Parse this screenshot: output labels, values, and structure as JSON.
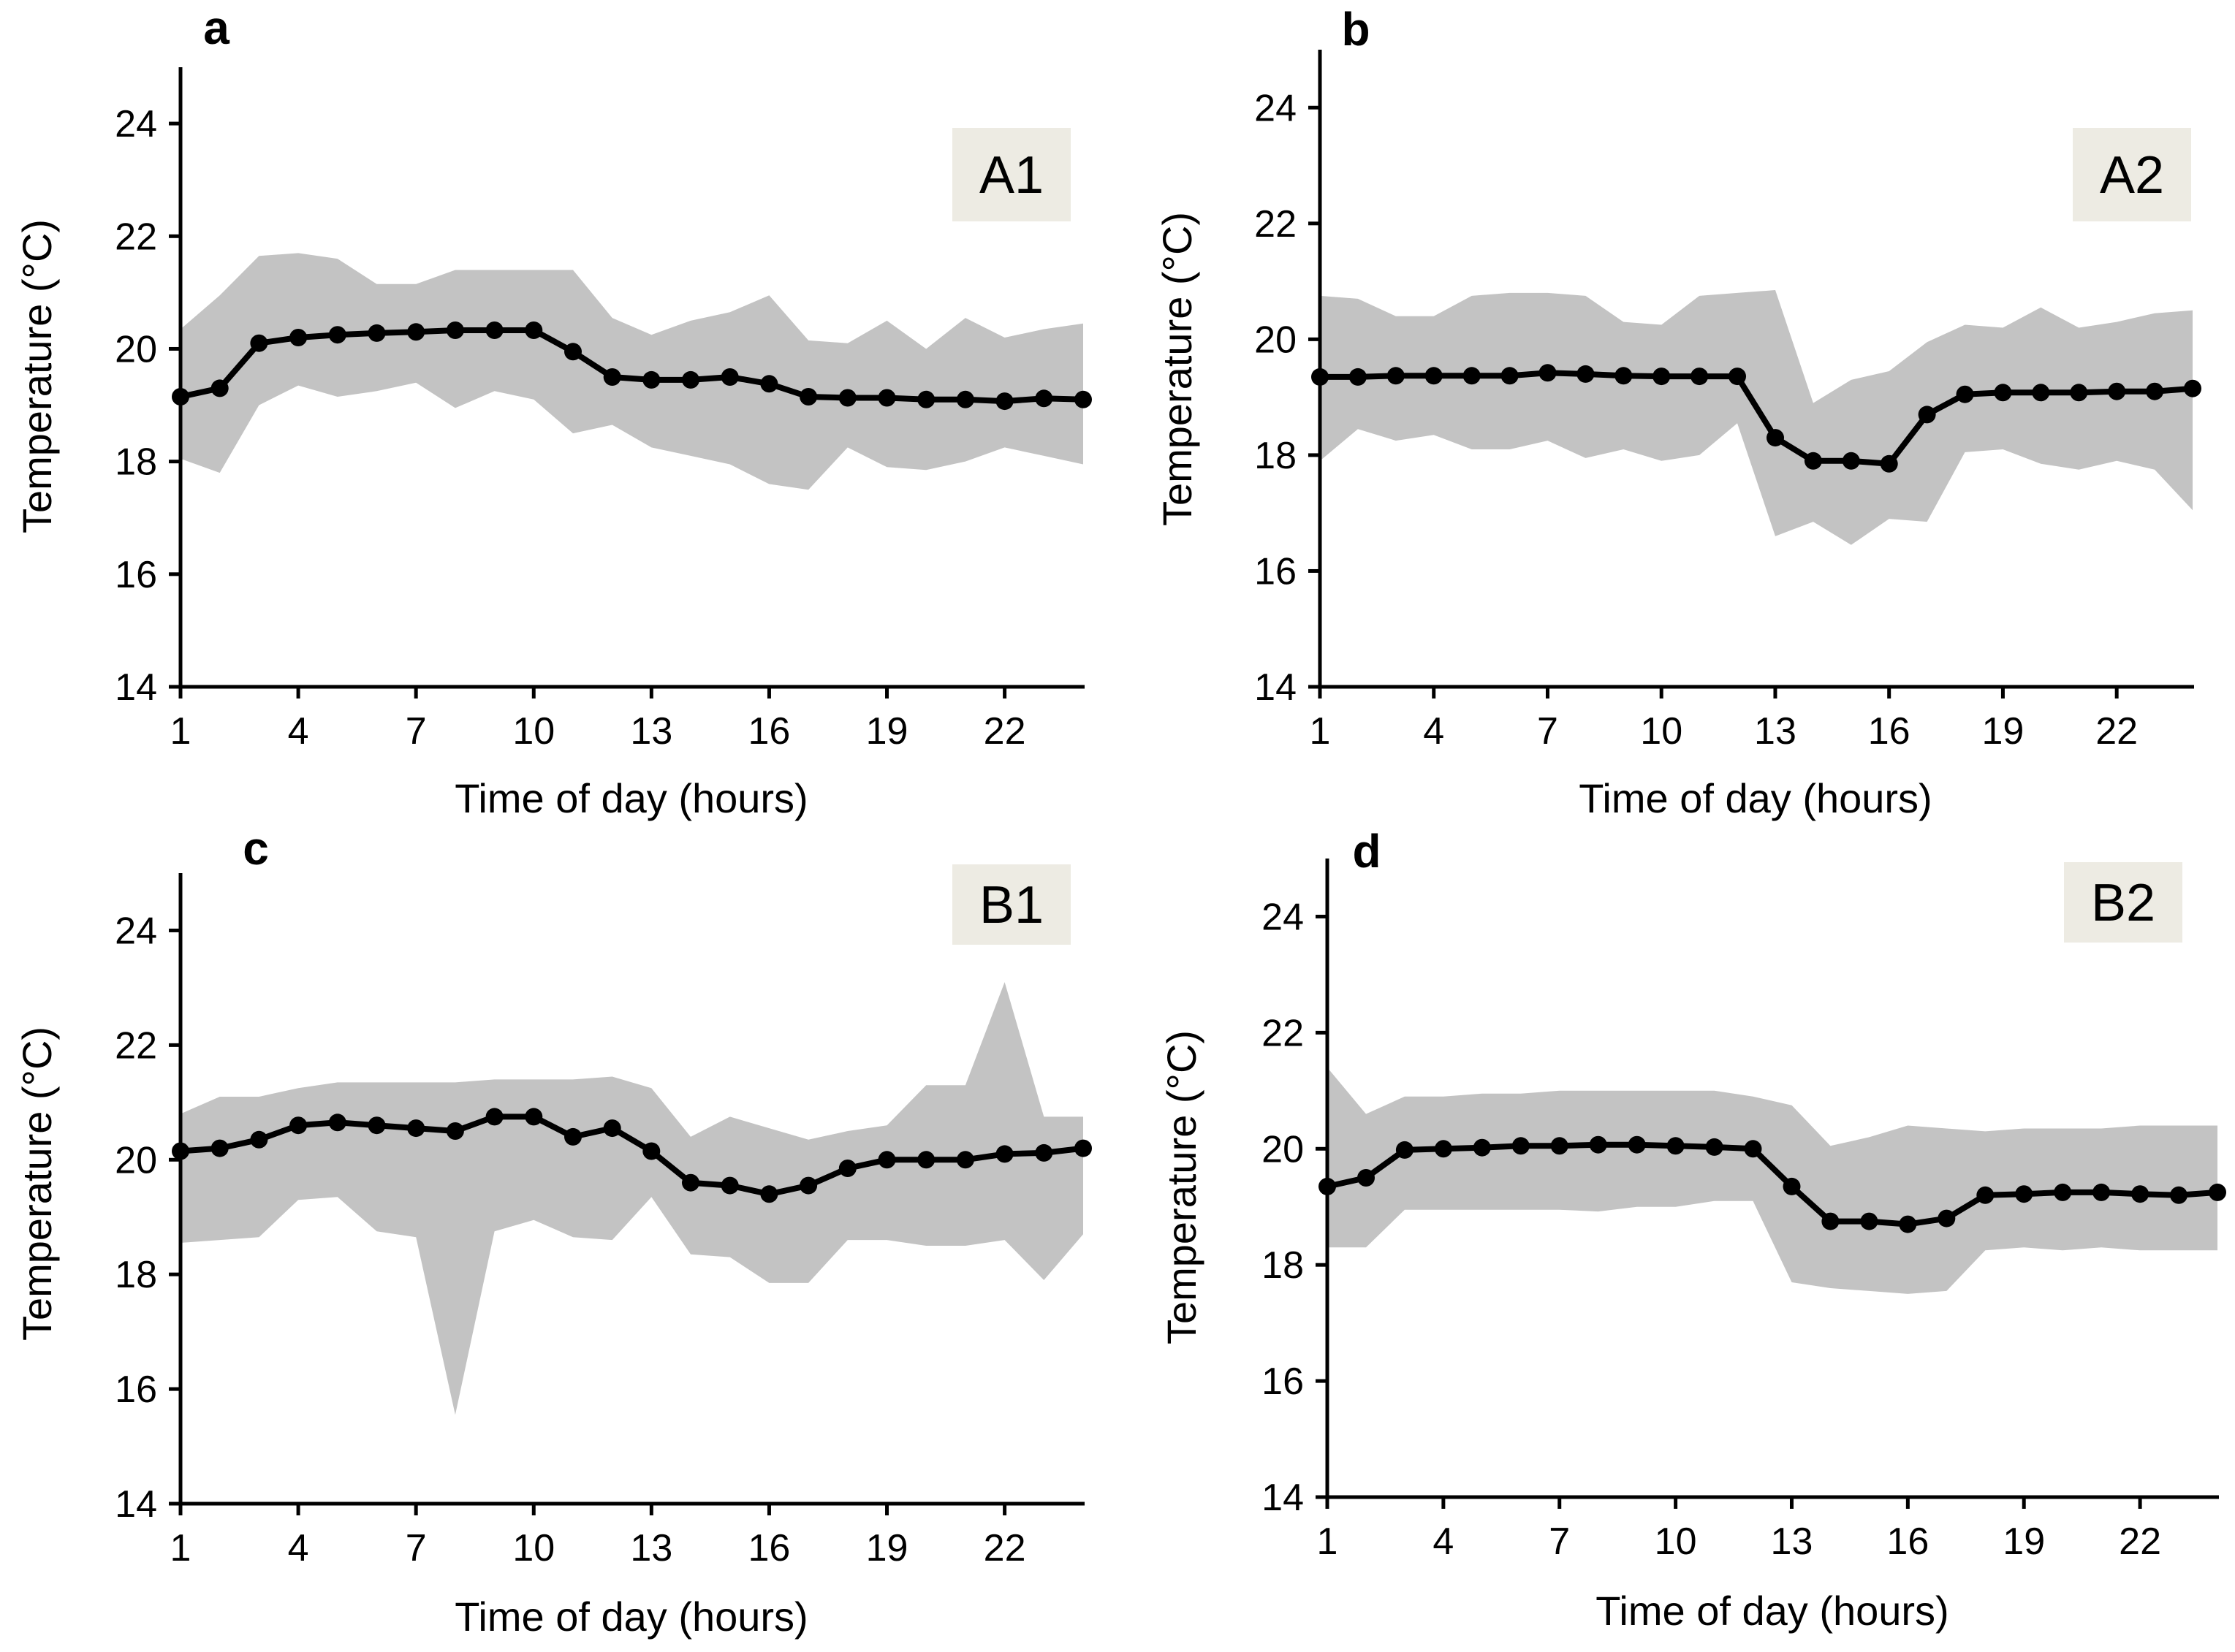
{
  "colors": {
    "band": "#c3c3c3",
    "line": "#000000",
    "tag_bg": "#edebe3",
    "axis": "#000000"
  },
  "chart_data": [
    {
      "type": "line",
      "panel": "a",
      "tag": "A1",
      "xlabel": "Time of day (hours)",
      "ylabel": "Temperature (°C)",
      "xlim": [
        1,
        24
      ],
      "ylim": [
        14,
        25
      ],
      "xticks": [
        1,
        4,
        7,
        10,
        13,
        16,
        19,
        22
      ],
      "yticks": [
        14,
        16,
        18,
        20,
        22,
        24
      ],
      "x": [
        1,
        2,
        3,
        4,
        5,
        6,
        7,
        8,
        9,
        10,
        11,
        12,
        13,
        14,
        15,
        16,
        17,
        18,
        19,
        20,
        21,
        22,
        23,
        24
      ],
      "series": [
        {
          "name": "mean",
          "values": [
            19.15,
            19.3,
            20.1,
            20.2,
            20.25,
            20.28,
            20.3,
            20.33,
            20.33,
            20.33,
            19.95,
            19.5,
            19.45,
            19.45,
            19.5,
            19.38,
            19.15,
            19.13,
            19.13,
            19.1,
            19.1,
            19.07,
            19.12,
            19.1
          ]
        },
        {
          "name": "max",
          "values": [
            20.35,
            20.95,
            21.65,
            21.7,
            21.6,
            21.15,
            21.15,
            21.4,
            21.4,
            21.4,
            21.4,
            20.55,
            20.25,
            20.5,
            20.65,
            20.95,
            20.15,
            20.1,
            20.5,
            20.0,
            20.55,
            20.2,
            20.35,
            20.45
          ]
        },
        {
          "name": "min",
          "values": [
            18.05,
            17.8,
            19.0,
            19.35,
            19.15,
            19.25,
            19.4,
            18.95,
            19.25,
            19.1,
            18.5,
            18.65,
            18.25,
            18.1,
            17.95,
            17.6,
            17.5,
            18.25,
            17.9,
            17.85,
            18.0,
            18.25,
            18.1,
            17.95
          ]
        }
      ]
    },
    {
      "type": "line",
      "panel": "b",
      "tag": "A2",
      "xlabel": "Time of day (hours)",
      "ylabel": "Temperature (°C)",
      "xlim": [
        1,
        24
      ],
      "ylim": [
        14,
        25
      ],
      "xticks": [
        1,
        4,
        7,
        10,
        13,
        16,
        19,
        22
      ],
      "yticks": [
        14,
        16,
        18,
        20,
        22,
        24
      ],
      "x": [
        1,
        2,
        3,
        4,
        5,
        6,
        7,
        8,
        9,
        10,
        11,
        12,
        13,
        14,
        15,
        16,
        17,
        18,
        19,
        20,
        21,
        22,
        23,
        24
      ],
      "series": [
        {
          "name": "mean",
          "values": [
            19.35,
            19.35,
            19.37,
            19.37,
            19.37,
            19.37,
            19.42,
            19.4,
            19.37,
            19.36,
            19.36,
            19.36,
            18.3,
            17.9,
            17.9,
            17.85,
            18.7,
            19.05,
            19.08,
            19.08,
            19.08,
            19.1,
            19.1,
            19.15
          ]
        },
        {
          "name": "max",
          "values": [
            20.75,
            20.7,
            20.4,
            20.4,
            20.75,
            20.8,
            20.8,
            20.75,
            20.3,
            20.25,
            20.75,
            20.8,
            20.85,
            18.9,
            19.3,
            19.45,
            19.95,
            20.25,
            20.2,
            20.55,
            20.2,
            20.3,
            20.45,
            20.5
          ]
        },
        {
          "name": "min",
          "values": [
            17.9,
            18.45,
            18.25,
            18.35,
            18.1,
            18.1,
            18.25,
            17.95,
            18.1,
            17.9,
            18.0,
            18.55,
            16.6,
            16.85,
            16.45,
            16.9,
            16.85,
            18.05,
            18.1,
            17.85,
            17.75,
            17.9,
            17.75,
            17.05
          ]
        }
      ]
    },
    {
      "type": "line",
      "panel": "c",
      "tag": "B1",
      "xlabel": "Time of day (hours)",
      "ylabel": "Temperature (°C)",
      "xlim": [
        1,
        24
      ],
      "ylim": [
        14,
        25
      ],
      "xticks": [
        1,
        4,
        7,
        10,
        13,
        16,
        19,
        22
      ],
      "yticks": [
        14,
        16,
        18,
        20,
        22,
        24
      ],
      "x": [
        1,
        2,
        3,
        4,
        5,
        6,
        7,
        8,
        9,
        10,
        11,
        12,
        13,
        14,
        15,
        16,
        17,
        18,
        19,
        20,
        21,
        22,
        23,
        24
      ],
      "series": [
        {
          "name": "mean",
          "values": [
            20.15,
            20.2,
            20.35,
            20.6,
            20.65,
            20.6,
            20.55,
            20.5,
            20.75,
            20.75,
            20.4,
            20.55,
            20.15,
            19.6,
            19.55,
            19.4,
            19.55,
            19.85,
            20.0,
            20.0,
            20.0,
            20.1,
            20.12,
            20.2
          ]
        },
        {
          "name": "max",
          "values": [
            20.8,
            21.1,
            21.1,
            21.25,
            21.35,
            21.35,
            21.35,
            21.35,
            21.4,
            21.4,
            21.4,
            21.45,
            21.25,
            20.4,
            20.75,
            20.55,
            20.35,
            20.5,
            20.6,
            21.3,
            21.3,
            23.1,
            20.75,
            20.75
          ]
        },
        {
          "name": "min",
          "values": [
            18.55,
            18.6,
            18.65,
            19.3,
            19.35,
            18.75,
            18.65,
            15.55,
            18.75,
            18.95,
            18.65,
            18.6,
            19.35,
            18.35,
            18.3,
            17.85,
            17.85,
            18.6,
            18.6,
            18.5,
            18.5,
            18.6,
            17.9,
            18.7
          ]
        }
      ]
    },
    {
      "type": "line",
      "panel": "d",
      "tag": "B2",
      "xlabel": "Time of day (hours)",
      "ylabel": "Temperature (°C)",
      "xlim": [
        1,
        24
      ],
      "ylim": [
        14,
        25
      ],
      "xticks": [
        1,
        4,
        7,
        10,
        13,
        16,
        19,
        22
      ],
      "yticks": [
        14,
        16,
        18,
        20,
        22,
        24
      ],
      "x": [
        1,
        2,
        3,
        4,
        5,
        6,
        7,
        8,
        9,
        10,
        11,
        12,
        13,
        14,
        15,
        16,
        17,
        18,
        19,
        20,
        21,
        22,
        23,
        24
      ],
      "series": [
        {
          "name": "mean",
          "values": [
            19.35,
            19.5,
            19.98,
            20.0,
            20.02,
            20.05,
            20.05,
            20.07,
            20.07,
            20.05,
            20.03,
            20.0,
            19.35,
            18.75,
            18.75,
            18.7,
            18.8,
            19.2,
            19.22,
            19.25,
            19.25,
            19.22,
            19.2,
            19.25
          ]
        },
        {
          "name": "max",
          "values": [
            21.4,
            20.6,
            20.9,
            20.9,
            20.95,
            20.95,
            21.0,
            21.0,
            21.0,
            21.0,
            21.0,
            20.9,
            20.75,
            20.05,
            20.2,
            20.4,
            20.35,
            20.3,
            20.35,
            20.35,
            20.35,
            20.4,
            20.4,
            20.4
          ]
        },
        {
          "name": "min",
          "values": [
            18.3,
            18.3,
            18.95,
            18.95,
            18.95,
            18.95,
            18.95,
            18.92,
            19.0,
            19.0,
            19.1,
            19.1,
            17.7,
            17.6,
            17.55,
            17.5,
            17.55,
            18.25,
            18.3,
            18.25,
            18.3,
            18.25,
            18.25,
            18.25
          ]
        }
      ]
    }
  ]
}
